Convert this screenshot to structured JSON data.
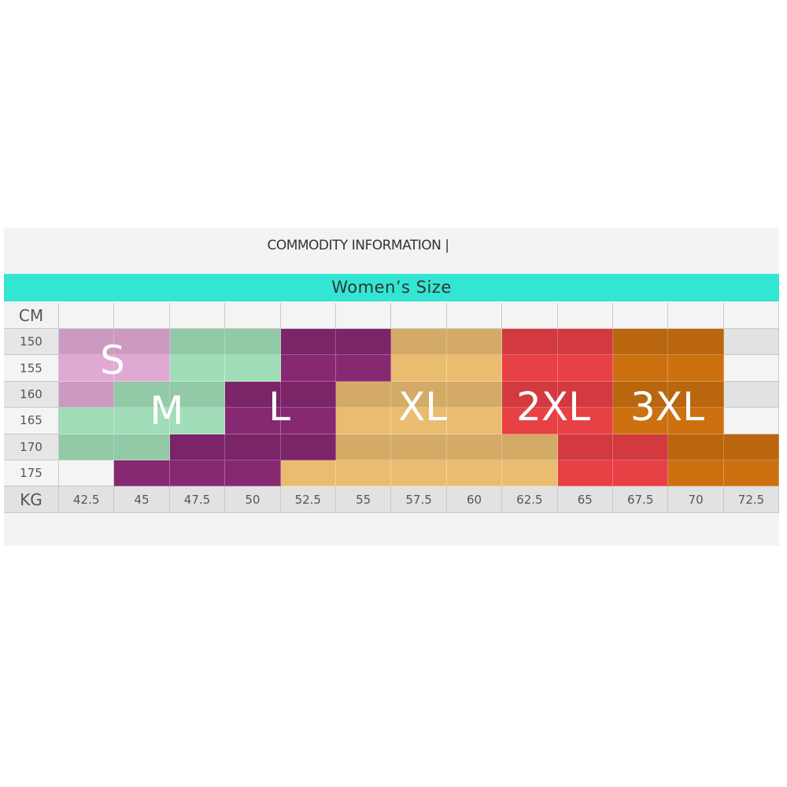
{
  "header": {
    "title": "COMMODITY INFORMATION |"
  },
  "banner": {
    "title": "Women’s Size"
  },
  "table": {
    "height_label": "CM",
    "weight_label": "KG",
    "heights": [
      "150",
      "155",
      "160",
      "165",
      "170",
      "175"
    ],
    "weights": [
      "42.5",
      "45",
      "47.5",
      "50",
      "52.5",
      "55",
      "57.5",
      "60",
      "62.5",
      "65",
      "67.5",
      "70",
      "72.5"
    ],
    "sizes": [
      {
        "name": "S",
        "color": "#cc9ac0"
      },
      {
        "name": "M",
        "color": "#92c9a7"
      },
      {
        "name": "L",
        "color": "#7b2468"
      },
      {
        "name": "XL",
        "color": "#d4ab66"
      },
      {
        "name": "2XL",
        "color": "#d23a3f"
      },
      {
        "name": "3XL",
        "color": "#b9660f"
      }
    ],
    "cells": [
      [
        0,
        0,
        1,
        1,
        2,
        2,
        3,
        3,
        4,
        4,
        5,
        5,
        null
      ],
      [
        0,
        0,
        1,
        1,
        2,
        2,
        3,
        3,
        4,
        4,
        5,
        5,
        null
      ],
      [
        0,
        1,
        1,
        2,
        2,
        3,
        3,
        3,
        4,
        4,
        5,
        5,
        null
      ],
      [
        1,
        1,
        1,
        2,
        2,
        3,
        3,
        3,
        4,
        4,
        5,
        5,
        null
      ],
      [
        1,
        1,
        2,
        2,
        2,
        3,
        3,
        3,
        3,
        4,
        4,
        5,
        5
      ],
      [
        null,
        2,
        2,
        2,
        3,
        3,
        3,
        3,
        3,
        4,
        4,
        5,
        5
      ]
    ]
  }
}
